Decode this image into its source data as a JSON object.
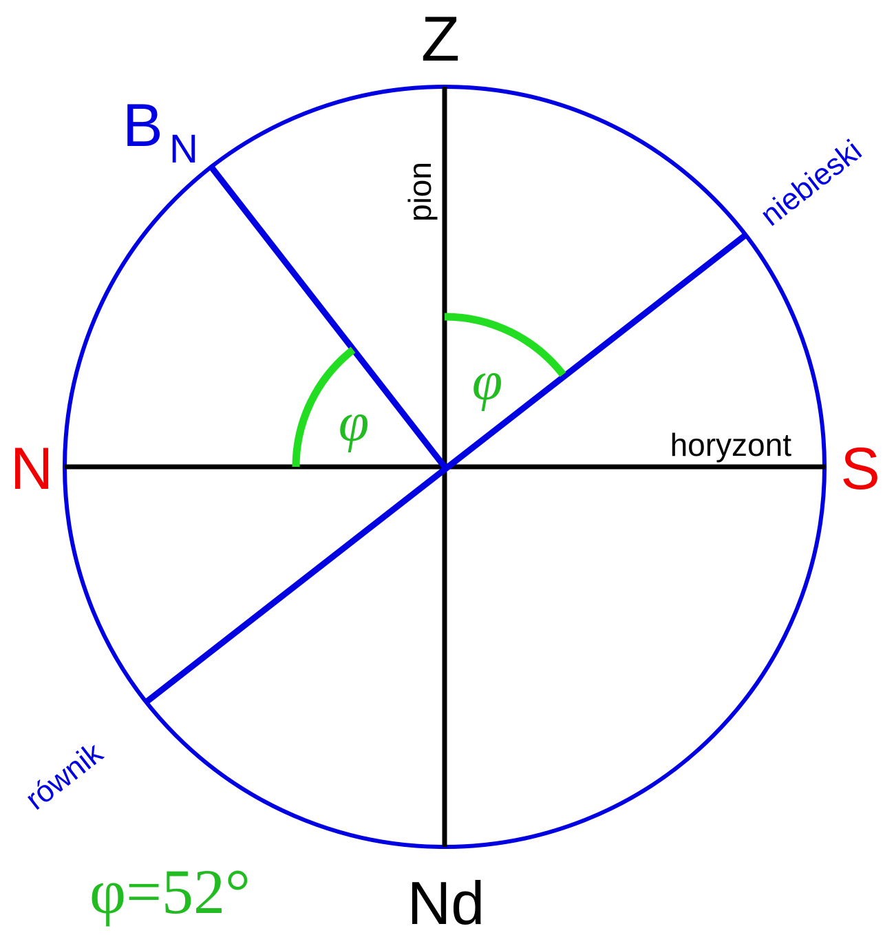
{
  "labels": {
    "zenith": "Z",
    "nadir": "Nd",
    "north": "N",
    "south": "S",
    "pole": {
      "text": "B",
      "subscript": "N"
    },
    "vertical": "pion",
    "horizon": "horyzont",
    "celestial": "niebieski",
    "equator": "równik",
    "angle_left": "φ",
    "angle_right": "φ",
    "formula": "φ=52°"
  }
}
